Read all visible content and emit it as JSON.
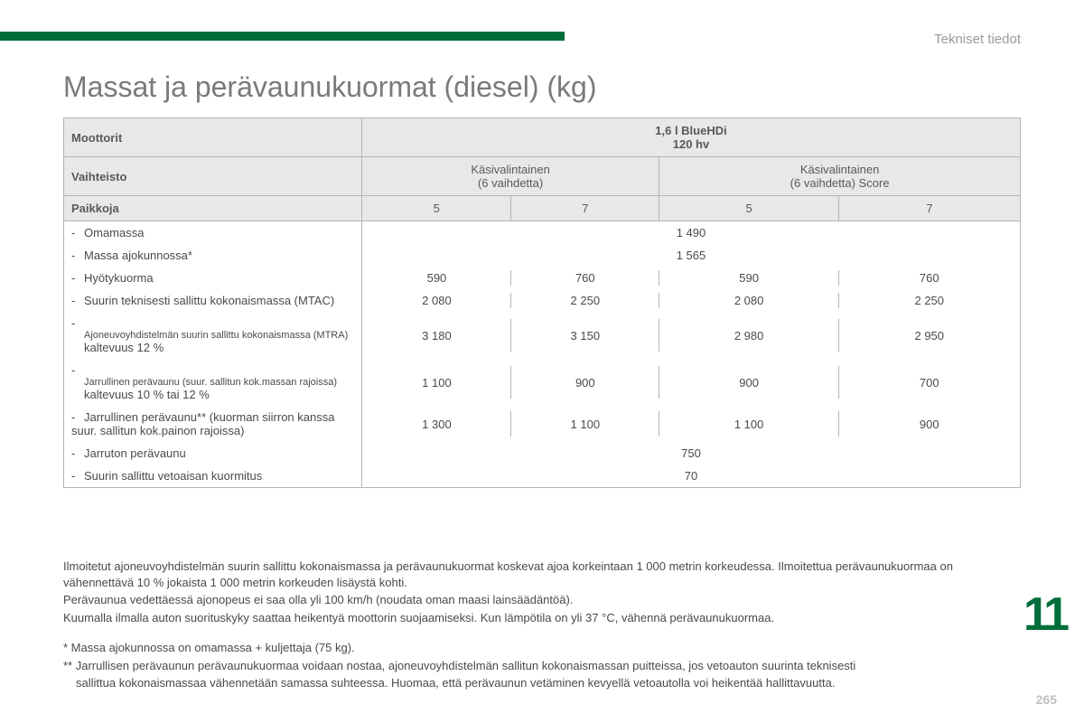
{
  "section_label": "Tekniset tiedot",
  "title": "Massat ja perävaunukuormat (diesel) (kg)",
  "colors": {
    "accent": "#006e3b",
    "header_bg": "#e8e8e6",
    "border": "#b5b5b5",
    "text": "#4a4a4a",
    "muted": "#9a9a9a"
  },
  "table": {
    "engines_label": "Moottorit",
    "engine_value_line1": "1,6 l BlueHDi",
    "engine_value_line2": "120 hv",
    "gearbox_label": "Vaihteisto",
    "gearbox1_line1": "Käsivalintainen",
    "gearbox1_line2": "(6 vaihdetta)",
    "gearbox2_line1": "Käsivalintainen",
    "gearbox2_line2": "(6 vaihdetta) Score",
    "seats_label": "Paikkoja",
    "seats": [
      "5",
      "7",
      "5",
      "7"
    ],
    "rows": [
      {
        "label": "Omamassa",
        "span": true,
        "value": "1 490"
      },
      {
        "label": "Massa ajokunnossa*",
        "span": true,
        "value": "1 565"
      },
      {
        "label": "Hyötykuorma",
        "values": [
          "590",
          "760",
          "590",
          "760"
        ]
      },
      {
        "label": "Suurin teknisesti sallittu kokonaismassa (MTAC)",
        "values": [
          "2 080",
          "2 250",
          "2 080",
          "2 250"
        ]
      },
      {
        "label_small": "Ajoneuvoyhdistelmän suurin sallittu kokonaismassa (MTRA)",
        "label_sub": "kaltevuus 12 %",
        "values": [
          "3 180",
          "3 150",
          "2 980",
          "2 950"
        ]
      },
      {
        "label_small": "Jarrullinen perävaunu (suur. sallitun kok.massan rajoissa)",
        "label_sub": "kaltevuus 10 % tai 12 %",
        "values": [
          "1 100",
          "900",
          "900",
          "700"
        ]
      },
      {
        "label": "Jarrullinen perävaunu** (kuorman siirron kanssa suur. sallitun kok.painon rajoissa)",
        "values": [
          "1 300",
          "1 100",
          "1 100",
          "900"
        ]
      },
      {
        "label": "Jarruton perävaunu",
        "span": true,
        "value": "750"
      },
      {
        "label": "Suurin sallittu vetoaisan kuormitus",
        "span": true,
        "value": "70"
      }
    ]
  },
  "notes": {
    "p1": "Ilmoitetut ajoneuvoyhdistelmän suurin sallittu kokonaismassa ja perävaunukuormat koskevat ajoa korkeintaan 1 000 metrin korkeudessa. Ilmoitettua perävaunukuormaa on vähennettävä 10 % jokaista 1 000 metrin korkeuden lisäystä kohti.",
    "p2": "Perävaunua vedettäessä ajonopeus ei saa olla yli 100 km/h (noudata oman maasi lainsäädäntöä).",
    "p3": "Kuumalla ilmalla auton suorituskyky saattaa heikentyä moottorin suojaamiseksi. Kun lämpötila on yli 37 °C, vähennä perävaunukuormaa.",
    "f1": "* Massa ajokunnossa on omamassa + kuljettaja (75 kg).",
    "f2a": "** Jarrullisen perävaunun perävaunukuormaa voidaan nostaa, ajoneuvoyhdistelmän sallitun kokonaismassan puitteissa, jos vetoauton suurinta teknisesti",
    "f2b": "sallittua kokonaismassaa vähennetään samassa suhteessa. Huomaa, että perävaunun vetäminen kevyellä vetoautolla voi heikentää hallittavuutta."
  },
  "chapter_number": "11",
  "page_number": "265"
}
